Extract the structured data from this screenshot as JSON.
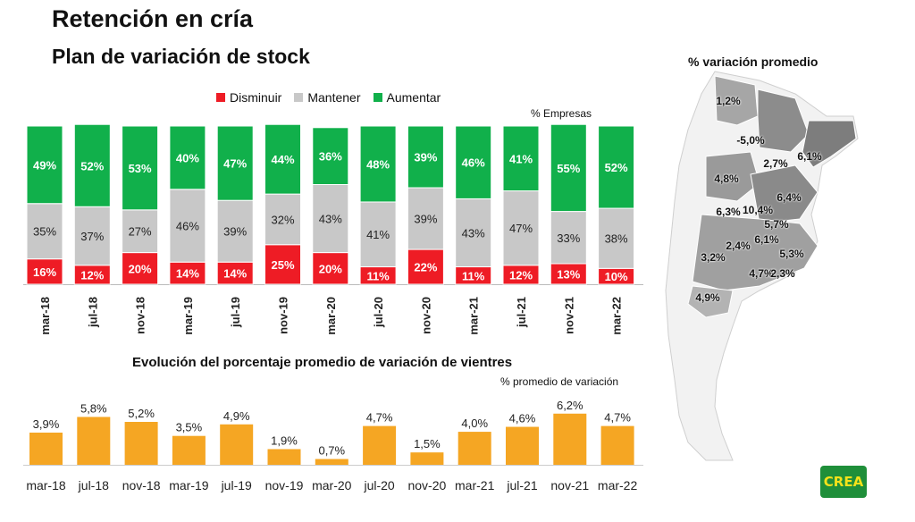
{
  "header": {
    "title": "Retención en cría",
    "subtitle": "Plan de variación de stock"
  },
  "chart_data": [
    {
      "type": "bar",
      "stacked": true,
      "note": "% Empresas",
      "legend": [
        "Disminuir",
        "Mantener",
        "Aumentar"
      ],
      "legend_placement": "top",
      "categories": [
        "mar-18",
        "jul-18",
        "nov-18",
        "mar-19",
        "jul-19",
        "nov-19",
        "mar-20",
        "jul-20",
        "nov-20",
        "mar-21",
        "jul-21",
        "nov-21",
        "mar-22"
      ],
      "series": [
        {
          "name": "Disminuir",
          "color": "#ee1c25",
          "values": [
            16,
            12,
            20,
            14,
            14,
            25,
            20,
            11,
            22,
            11,
            12,
            13,
            10
          ]
        },
        {
          "name": "Mantener",
          "color": "#c8c8c8",
          "values": [
            35,
            37,
            27,
            46,
            39,
            32,
            43,
            41,
            39,
            43,
            47,
            33,
            38
          ]
        },
        {
          "name": "Aumentar",
          "color": "#11b04b",
          "values": [
            49,
            52,
            53,
            40,
            47,
            44,
            36,
            48,
            39,
            46,
            41,
            55,
            52
          ]
        }
      ],
      "ylim": [
        0,
        100
      ]
    },
    {
      "type": "bar",
      "title": "Evolución del porcentaje promedio de variación de vientres",
      "note": "% promedio de variación",
      "categories": [
        "mar-18",
        "jul-18",
        "nov-18",
        "mar-19",
        "jul-19",
        "nov-19",
        "mar-20",
        "jul-20",
        "nov-20",
        "mar-21",
        "jul-21",
        "nov-21",
        "mar-22"
      ],
      "values": [
        3.9,
        5.8,
        5.2,
        3.5,
        4.9,
        1.9,
        0.7,
        4.7,
        1.5,
        4.0,
        4.6,
        6.2,
        4.7
      ],
      "value_labels": [
        "3,9%",
        "5,8%",
        "5,2%",
        "3,5%",
        "4,9%",
        "1,9%",
        "0,7%",
        "4,7%",
        "1,5%",
        "4,0%",
        "4,6%",
        "6,2%",
        "4,7%"
      ],
      "color": "#f5a623",
      "ylim": [
        0,
        6.5
      ]
    }
  ],
  "map": {
    "title": "% variación promedio",
    "labels": [
      "1,2%",
      "-5,0%",
      "2,7%",
      "6,1%",
      "4,8%",
      "6,4%",
      "6,3%",
      "10,4%",
      "5,7%",
      "2,4%",
      "6,1%",
      "5,3%",
      "3,2%",
      "4,7%",
      "2,3%",
      "4,9%"
    ]
  },
  "logo": "CREA"
}
